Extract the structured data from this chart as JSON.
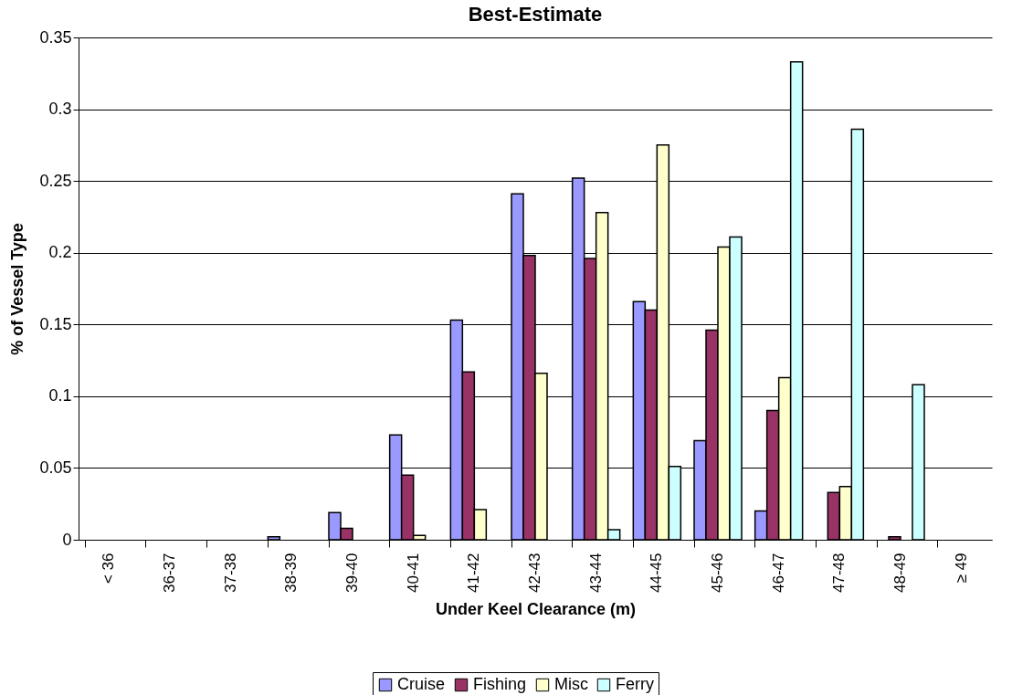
{
  "chart_data": {
    "type": "bar",
    "title": "Best-Estimate",
    "xlabel": "Under Keel Clearance (m)",
    "ylabel": "% of Vessel Type",
    "categories": [
      "< 36",
      "36-37",
      "37-38",
      "38-39",
      "39-40",
      "40-41",
      "41-42",
      "42-43",
      "43-44",
      "44-45",
      "45-46",
      "46-47",
      "47-48",
      "48-49",
      "≥ 49"
    ],
    "series": [
      {
        "name": "Cruise",
        "color": "#9999ff",
        "values": [
          null,
          null,
          null,
          0.002,
          0.019,
          0.073,
          0.153,
          0.241,
          0.252,
          0.166,
          0.069,
          0.02,
          null,
          null,
          null
        ]
      },
      {
        "name": "Fishing",
        "color": "#993366",
        "values": [
          null,
          null,
          null,
          null,
          0.008,
          0.045,
          0.117,
          0.198,
          0.196,
          0.16,
          0.146,
          0.09,
          0.033,
          0.002,
          null
        ]
      },
      {
        "name": "Misc",
        "color": "#ffffcc",
        "values": [
          null,
          null,
          null,
          null,
          null,
          0.003,
          0.021,
          0.116,
          0.228,
          0.275,
          0.204,
          0.113,
          0.037,
          null,
          null
        ]
      },
      {
        "name": "Ferry",
        "color": "#ccffff",
        "values": [
          null,
          null,
          null,
          null,
          null,
          null,
          null,
          null,
          0.007,
          0.051,
          0.211,
          0.333,
          0.286,
          0.108,
          null
        ]
      }
    ],
    "ylim": [
      0,
      0.35
    ],
    "yticks": [
      0,
      0.05,
      0.1,
      0.15,
      0.2,
      0.25,
      0.3,
      0.35
    ],
    "grid": "y",
    "legend": "bottom"
  }
}
